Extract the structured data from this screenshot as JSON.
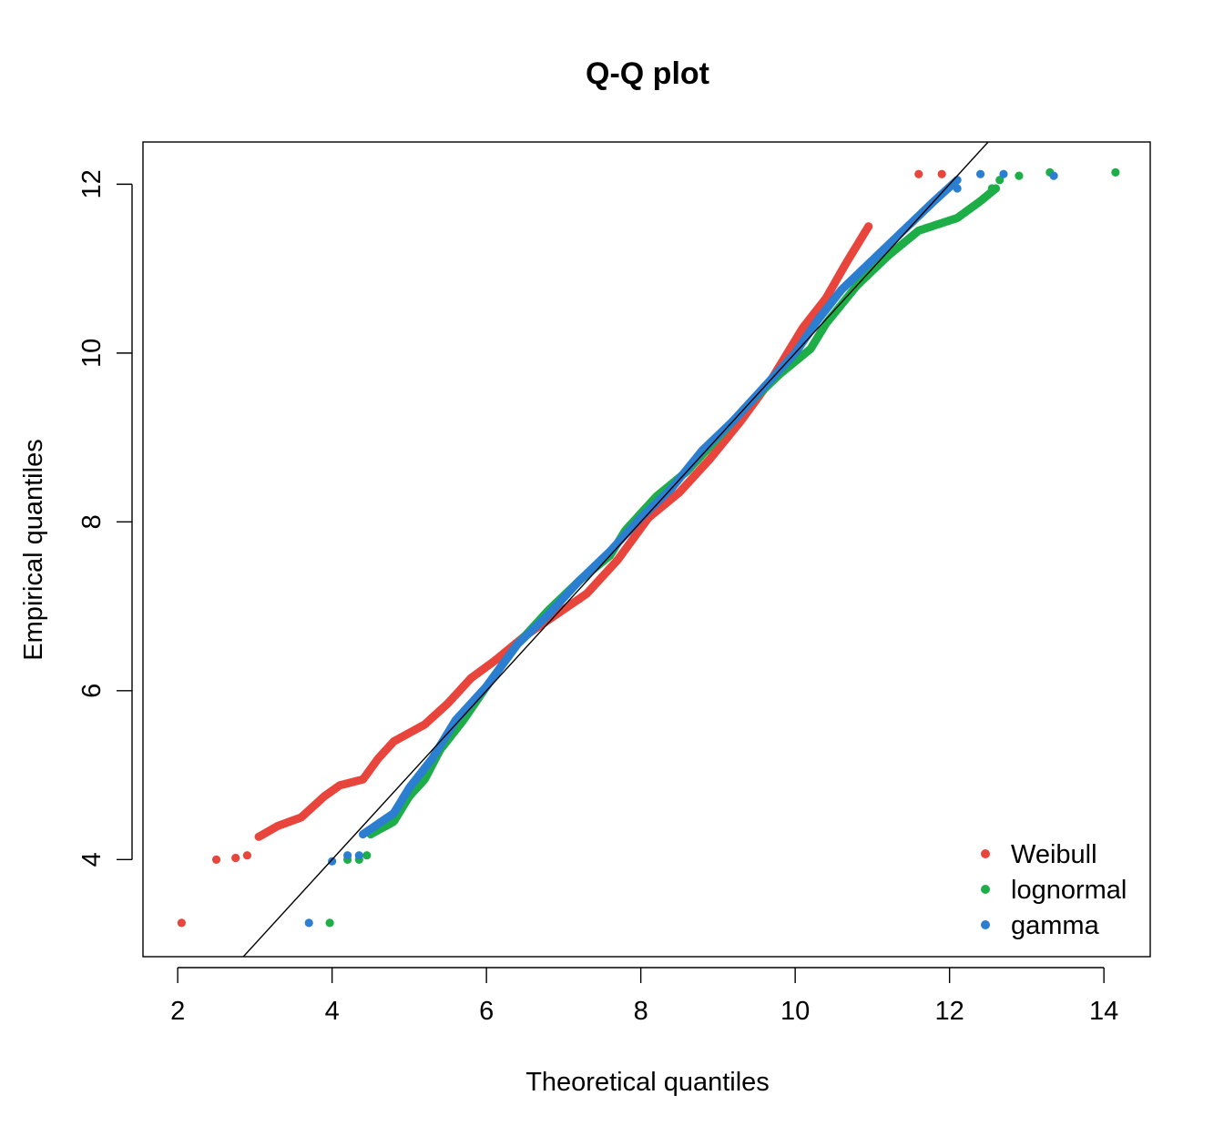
{
  "chart_data": {
    "type": "scatter",
    "title": "Q-Q plot",
    "xlabel": "Theoretical quantiles",
    "ylabel": "Empirical quantiles",
    "xlim": [
      1.55,
      14.6
    ],
    "ylim": [
      2.85,
      12.5
    ],
    "xticks": [
      2,
      4,
      6,
      8,
      10,
      12,
      14
    ],
    "yticks": [
      4,
      6,
      8,
      10,
      12
    ],
    "grid": false,
    "legend_position": "bottom-right",
    "reference_line": {
      "slope": 1,
      "intercept": 0,
      "color": "#000000"
    },
    "series": [
      {
        "name": "Weibull",
        "color": "#E8453C",
        "anchors": [
          [
            2.05,
            3.25
          ],
          [
            2.5,
            4.0
          ],
          [
            2.75,
            4.02
          ],
          [
            2.9,
            4.05
          ],
          [
            3.05,
            4.27
          ],
          [
            3.3,
            4.4
          ],
          [
            3.6,
            4.5
          ],
          [
            3.9,
            4.75
          ],
          [
            4.1,
            4.88
          ],
          [
            4.4,
            4.95
          ],
          [
            4.6,
            5.2
          ],
          [
            4.8,
            5.4
          ],
          [
            5.2,
            5.6
          ],
          [
            5.5,
            5.85
          ],
          [
            5.8,
            6.15
          ],
          [
            6.1,
            6.35
          ],
          [
            6.5,
            6.65
          ],
          [
            6.9,
            6.9
          ],
          [
            7.3,
            7.15
          ],
          [
            7.7,
            7.55
          ],
          [
            8.1,
            8.05
          ],
          [
            8.5,
            8.35
          ],
          [
            8.9,
            8.75
          ],
          [
            9.3,
            9.2
          ],
          [
            9.7,
            9.7
          ],
          [
            10.1,
            10.3
          ],
          [
            10.4,
            10.65
          ],
          [
            10.65,
            11.05
          ],
          [
            10.95,
            11.5
          ],
          [
            11.15,
            11.95
          ],
          [
            11.3,
            12.1
          ],
          [
            11.9,
            12.12
          ]
        ],
        "outliers": [
          [
            2.05,
            3.25
          ],
          [
            2.5,
            4.0
          ],
          [
            2.75,
            4.02
          ],
          [
            2.9,
            4.05
          ],
          [
            11.6,
            12.12
          ],
          [
            11.9,
            12.12
          ]
        ]
      },
      {
        "name": "lognormal",
        "color": "#1EAE48",
        "anchors": [
          [
            3.97,
            3.25
          ],
          [
            4.2,
            4.0
          ],
          [
            4.35,
            4.0
          ],
          [
            4.45,
            4.05
          ],
          [
            4.5,
            4.3
          ],
          [
            4.8,
            4.45
          ],
          [
            5.0,
            4.75
          ],
          [
            5.2,
            4.95
          ],
          [
            5.4,
            5.3
          ],
          [
            5.7,
            5.65
          ],
          [
            6.0,
            6.05
          ],
          [
            6.4,
            6.55
          ],
          [
            6.8,
            6.95
          ],
          [
            7.2,
            7.3
          ],
          [
            7.6,
            7.6
          ],
          [
            7.8,
            7.9
          ],
          [
            8.2,
            8.3
          ],
          [
            8.6,
            8.6
          ],
          [
            9.0,
            9.0
          ],
          [
            9.4,
            9.4
          ],
          [
            9.8,
            9.75
          ],
          [
            10.2,
            10.05
          ],
          [
            10.4,
            10.35
          ],
          [
            10.8,
            10.8
          ],
          [
            11.2,
            11.15
          ],
          [
            11.6,
            11.45
          ],
          [
            12.1,
            11.6
          ],
          [
            12.4,
            11.8
          ],
          [
            12.6,
            11.95
          ],
          [
            12.9,
            12.1
          ],
          [
            13.3,
            12.14
          ],
          [
            14.15,
            12.14
          ]
        ],
        "outliers": [
          [
            3.97,
            3.25
          ],
          [
            4.2,
            4.0
          ],
          [
            4.35,
            4.0
          ],
          [
            4.45,
            4.05
          ],
          [
            12.55,
            11.95
          ],
          [
            12.65,
            12.05
          ],
          [
            12.9,
            12.1
          ],
          [
            13.3,
            12.14
          ],
          [
            14.15,
            12.14
          ]
        ]
      },
      {
        "name": "gamma",
        "color": "#2C7FD0",
        "anchors": [
          [
            3.7,
            3.25
          ],
          [
            4.0,
            3.98
          ],
          [
            4.2,
            4.05
          ],
          [
            4.35,
            4.05
          ],
          [
            4.4,
            4.3
          ],
          [
            4.8,
            4.55
          ],
          [
            5.0,
            4.85
          ],
          [
            5.3,
            5.2
          ],
          [
            5.6,
            5.65
          ],
          [
            6.0,
            6.05
          ],
          [
            6.4,
            6.55
          ],
          [
            6.8,
            6.9
          ],
          [
            7.2,
            7.3
          ],
          [
            7.6,
            7.65
          ],
          [
            8.0,
            8.05
          ],
          [
            8.4,
            8.4
          ],
          [
            8.8,
            8.85
          ],
          [
            9.2,
            9.2
          ],
          [
            9.6,
            9.6
          ],
          [
            10.0,
            10.0
          ],
          [
            10.3,
            10.4
          ],
          [
            10.6,
            10.75
          ],
          [
            11.0,
            11.1
          ],
          [
            11.4,
            11.45
          ],
          [
            11.8,
            11.8
          ],
          [
            12.1,
            12.05
          ],
          [
            12.4,
            12.12
          ],
          [
            12.7,
            12.12
          ],
          [
            13.35,
            12.1
          ]
        ],
        "outliers": [
          [
            3.7,
            3.25
          ],
          [
            4.0,
            3.98
          ],
          [
            4.2,
            4.05
          ],
          [
            4.35,
            4.05
          ],
          [
            12.1,
            11.95
          ],
          [
            12.4,
            12.12
          ],
          [
            12.7,
            12.12
          ],
          [
            13.35,
            12.1
          ]
        ]
      }
    ]
  }
}
